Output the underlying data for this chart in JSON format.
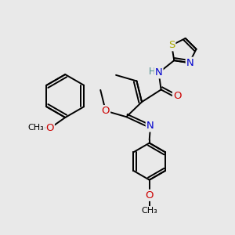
{
  "bg_color": "#e9e9e9",
  "bond_color": "#000000",
  "atom_colors": {
    "N": "#0000cc",
    "O": "#cc0000",
    "S": "#aaaa00",
    "H": "#4a8a8a",
    "C": "#000000"
  },
  "bond_lw": 1.4,
  "font_size": 8.5,
  "fig_size": [
    3.0,
    3.0
  ],
  "dpi": 100
}
